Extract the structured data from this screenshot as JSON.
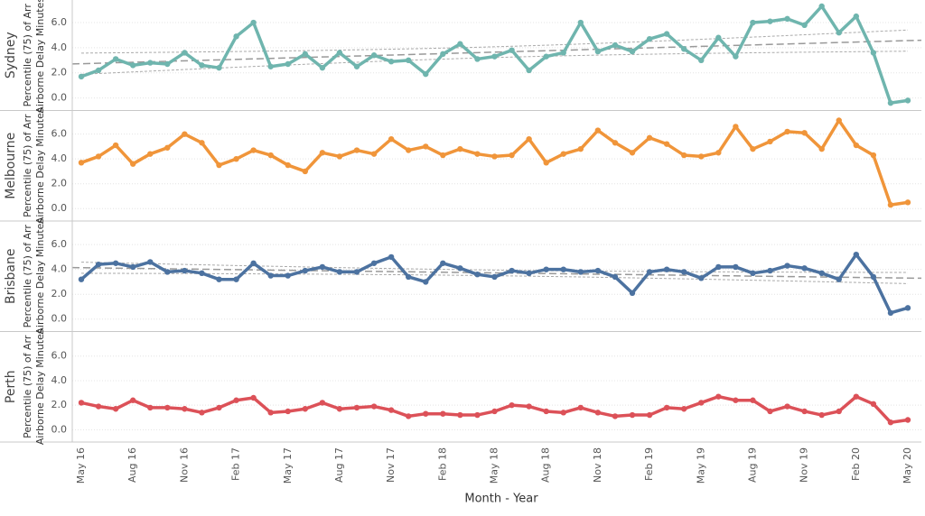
{
  "chart_data": [
    {
      "type": "line",
      "title": "Sydney",
      "y_label": [
        "Percentile (75) of Arr",
        "Airborne Delay Minutes"
      ],
      "color": "#6fb5ae",
      "values": [
        1.7,
        2.2,
        3.1,
        2.6,
        2.8,
        2.7,
        3.6,
        2.6,
        2.4,
        4.9,
        6.0,
        2.5,
        2.7,
        3.5,
        2.4,
        3.6,
        2.5,
        3.4,
        2.9,
        3.0,
        1.9,
        3.5,
        4.3,
        3.1,
        3.3,
        3.8,
        2.2,
        3.3,
        3.6,
        6.0,
        3.7,
        4.2,
        3.7,
        4.7,
        5.1,
        3.9,
        3.0,
        4.8,
        3.3,
        6.0,
        6.1,
        6.3,
        5.8,
        7.3,
        5.2,
        6.5,
        3.6,
        -0.4,
        -0.2
      ],
      "ylim": [
        -1,
        7.8
      ],
      "yticks": [
        {
          "value": 0,
          "label": "0.0"
        },
        {
          "value": 2,
          "label": "2.0"
        },
        {
          "value": 4,
          "label": "4.0"
        },
        {
          "value": 6,
          "label": "6.0"
        }
      ],
      "grid": true,
      "trend_line": true
    },
    {
      "type": "line",
      "title": "Melbourne",
      "y_label": [
        "Percentile (75) of Arr",
        "Airborne Delay Minutes"
      ],
      "color": "#f0953a",
      "values": [
        3.7,
        4.2,
        5.1,
        3.6,
        4.4,
        4.9,
        6.0,
        5.3,
        3.5,
        4.0,
        4.7,
        4.3,
        3.5,
        3.0,
        4.5,
        4.2,
        4.7,
        4.4,
        5.6,
        4.7,
        5.0,
        4.3,
        4.8,
        4.4,
        4.2,
        4.3,
        5.6,
        3.7,
        4.4,
        4.8,
        6.3,
        5.3,
        4.5,
        5.7,
        5.2,
        4.3,
        4.2,
        4.5,
        6.6,
        4.8,
        5.4,
        6.2,
        6.1,
        4.8,
        7.1,
        5.1,
        4.3,
        0.3,
        0.5
      ],
      "ylim": [
        -1,
        7.9
      ],
      "yticks": [
        {
          "value": 0,
          "label": "0.0"
        },
        {
          "value": 2,
          "label": "2.0"
        },
        {
          "value": 4,
          "label": "4.0"
        },
        {
          "value": 6,
          "label": "6.0"
        }
      ],
      "grid": true,
      "trend_line": false
    },
    {
      "type": "line",
      "title": "Brisbane",
      "y_label": [
        "Percentile (75) of Arr",
        "Airborne Delay Minutes"
      ],
      "color": "#4c72a0",
      "values": [
        3.2,
        4.4,
        4.5,
        4.2,
        4.6,
        3.8,
        3.9,
        3.7,
        3.2,
        3.2,
        4.5,
        3.5,
        3.5,
        3.9,
        4.2,
        3.8,
        3.8,
        4.5,
        5.0,
        3.4,
        3.0,
        4.5,
        4.1,
        3.6,
        3.4,
        3.9,
        3.7,
        4.0,
        4.0,
        3.8,
        3.9,
        3.4,
        2.1,
        3.8,
        4.0,
        3.8,
        3.3,
        4.2,
        4.2,
        3.7,
        3.9,
        4.3,
        4.1,
        3.7,
        3.2,
        5.2,
        3.4,
        0.5,
        0.9
      ],
      "ylim": [
        -1,
        7.9
      ],
      "yticks": [
        {
          "value": 0,
          "label": "0.0"
        },
        {
          "value": 2,
          "label": "2.0"
        },
        {
          "value": 4,
          "label": "4.0"
        },
        {
          "value": 6,
          "label": "6.0"
        }
      ],
      "grid": true,
      "trend_line": true
    },
    {
      "type": "line",
      "title": "Perth",
      "y_label": [
        "Percentile (75) of Arr",
        "Airborne Delay Minutes"
      ],
      "color": "#dc5158",
      "values": [
        2.2,
        1.9,
        1.7,
        2.4,
        1.8,
        1.8,
        1.7,
        1.4,
        1.8,
        2.4,
        2.6,
        1.4,
        1.5,
        1.7,
        2.2,
        1.7,
        1.8,
        1.9,
        1.6,
        1.1,
        1.3,
        1.3,
        1.2,
        1.2,
        1.5,
        2.0,
        1.9,
        1.5,
        1.4,
        1.8,
        1.4,
        1.1,
        1.2,
        1.2,
        1.8,
        1.7,
        2.2,
        2.7,
        2.4,
        2.4,
        1.5,
        1.9,
        1.5,
        1.2,
        1.5,
        2.7,
        2.1,
        0.6,
        0.8
      ],
      "ylim": [
        -1,
        8.0
      ],
      "yticks": [
        {
          "value": 0,
          "label": "0.0"
        },
        {
          "value": 2,
          "label": "2.0"
        },
        {
          "value": 4,
          "label": "4.0"
        },
        {
          "value": 6,
          "label": "6.0"
        }
      ],
      "grid": true,
      "trend_line": false,
      "x_label": "Month - Year",
      "categories": [
        "May 16",
        null,
        null,
        "Aug 16",
        null,
        null,
        "Nov 16",
        null,
        null,
        "Feb 17",
        null,
        null,
        "May 17",
        null,
        null,
        "Aug 17",
        null,
        null,
        "Nov 17",
        null,
        null,
        "Feb 18",
        null,
        null,
        "May 18",
        null,
        null,
        "Aug 18",
        null,
        null,
        "Nov 18",
        null,
        null,
        "Feb 19",
        null,
        null,
        "May 19",
        null,
        null,
        "Aug 19",
        null,
        null,
        "Nov 19",
        null,
        null,
        "Feb 20",
        null,
        null,
        "May 20"
      ]
    }
  ]
}
